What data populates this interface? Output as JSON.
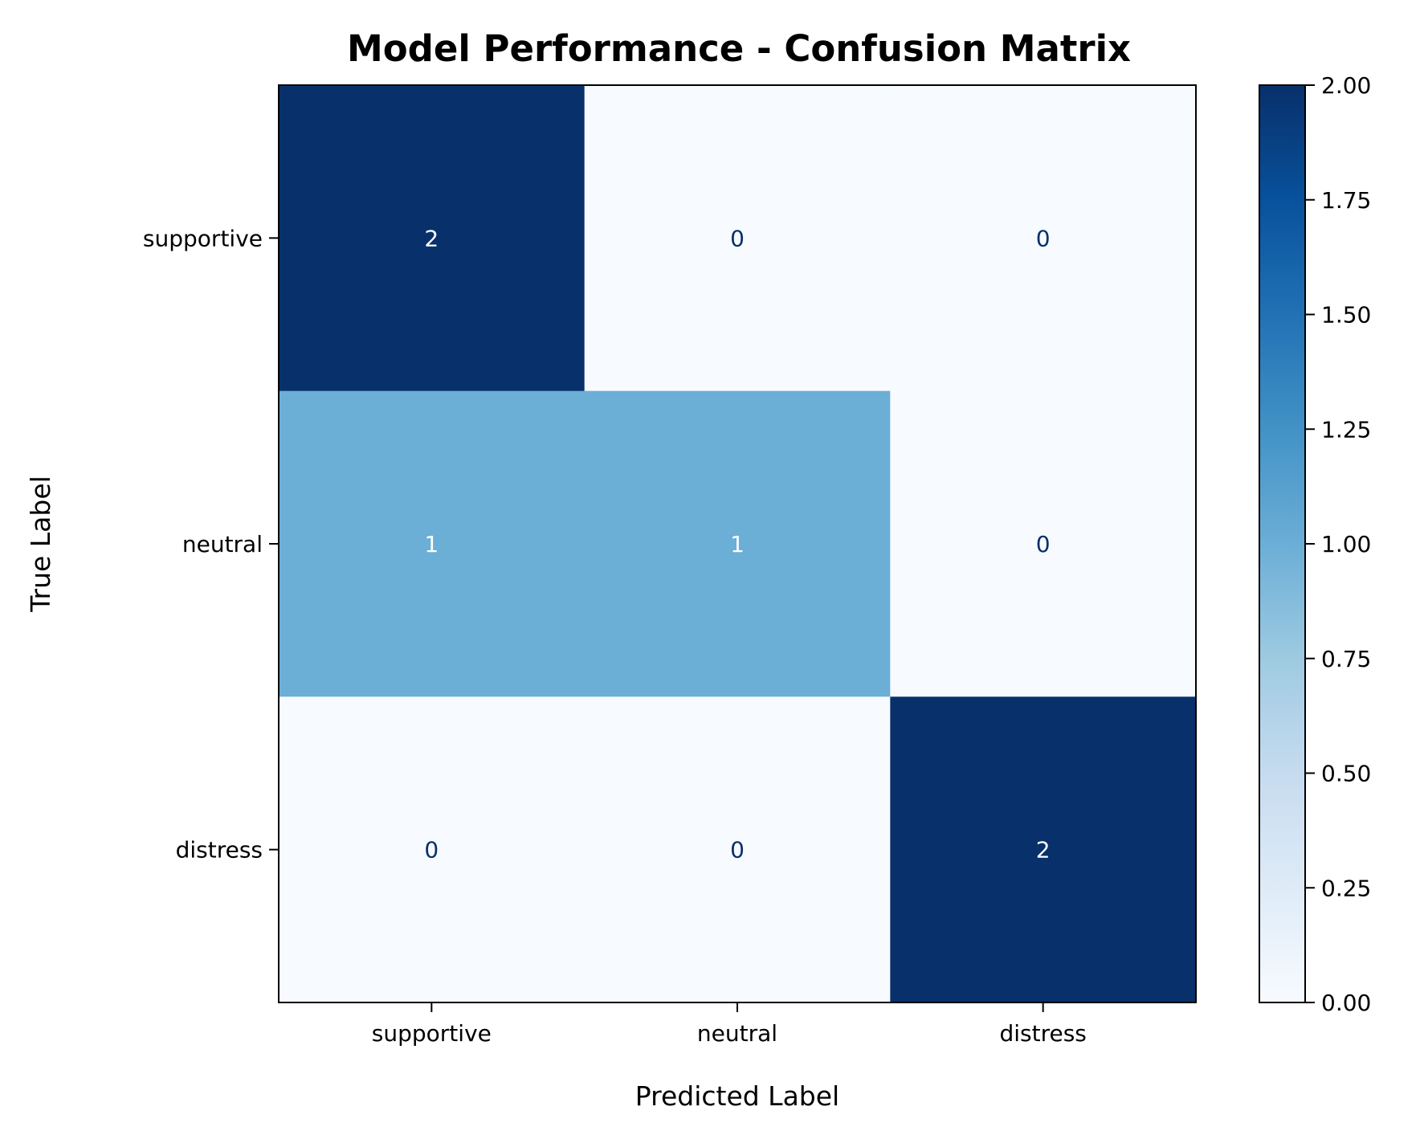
{
  "chart_data": {
    "type": "heatmap",
    "title": "Model Performance - Confusion Matrix",
    "xlabel": "Predicted Label",
    "ylabel": "True Label",
    "x_categories": [
      "supportive",
      "neutral",
      "distress"
    ],
    "y_categories": [
      "supportive",
      "neutral",
      "distress"
    ],
    "matrix": [
      [
        2,
        0,
        0
      ],
      [
        1,
        1,
        0
      ],
      [
        0,
        0,
        2
      ]
    ],
    "colorbar": {
      "range": [
        0,
        2
      ],
      "ticks": [
        "0.00",
        "0.25",
        "0.50",
        "0.75",
        "1.00",
        "1.25",
        "1.50",
        "1.75",
        "2.00"
      ],
      "colormap": [
        "#f7fbff",
        "#deebf7",
        "#c6dbef",
        "#9ecae1",
        "#6baed6",
        "#4292c6",
        "#2171b5",
        "#08519c",
        "#08306b"
      ]
    },
    "grid": false
  }
}
